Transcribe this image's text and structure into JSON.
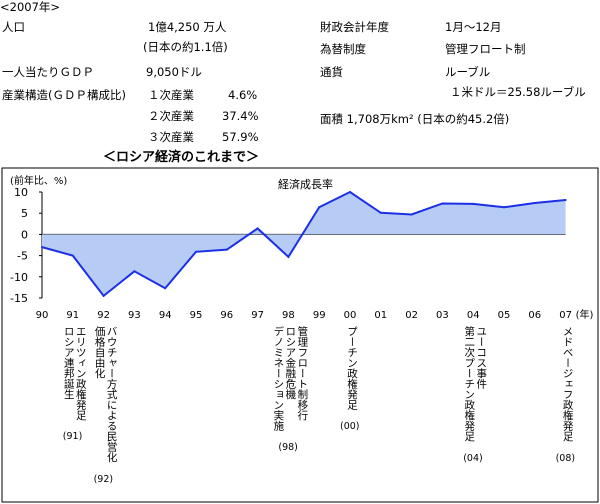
{
  "header": {
    "year_tag": "<2007年>",
    "population_label": "人口",
    "population_value": "1億4,250 万人",
    "population_note": "(日本の約1.1倍)",
    "fiscal_label": "財政会計年度",
    "fiscal_value": "1月～12月",
    "fx_system_label": "為替制度",
    "fx_system_value": "管理フロート制",
    "gdp_pc_label": "一人当たりＧＤＰ",
    "gdp_pc_value": "9,050ドル",
    "currency_label": "通貨",
    "currency_value": "ルーブル",
    "rate_value": "１米ドル＝25.58ルーブル",
    "structure_label": "産業構造(ＧＤＰ構成比)",
    "sector1_label": "１次産業",
    "sector1_value": "4.6%",
    "sector2_label": "２次産業",
    "sector2_value": "37.4%",
    "sector3_label": "３次産業",
    "sector3_value": "57.9%",
    "area_value": "面積 1,708万km² (日本の約45.2倍)"
  },
  "chart_data": {
    "type": "area",
    "title": "＜ロシア経済のこれまで＞",
    "ylabel": "(前年比、%)",
    "xlabel": "(年)",
    "series": [
      {
        "name": "経済成長率",
        "x": [
          "90",
          "91",
          "92",
          "93",
          "94",
          "95",
          "96",
          "97",
          "98",
          "99",
          "00",
          "01",
          "02",
          "03",
          "04",
          "05",
          "06",
          "07"
        ],
        "values": [
          -3.0,
          -5.0,
          -14.5,
          -8.7,
          -12.7,
          -4.1,
          -3.6,
          1.4,
          -5.3,
          6.4,
          10.0,
          5.1,
          4.7,
          7.3,
          7.2,
          6.4,
          7.4,
          8.1
        ]
      }
    ],
    "ylim": [
      -15,
      10
    ],
    "yticks": [
      10,
      5,
      0,
      -5,
      -10,
      -15
    ],
    "fill_color": "#b7ccf4",
    "line_color": "#1a2fe6",
    "annotations": [
      {
        "x": "91",
        "lines": [
          "エリツィン政権発足",
          "ロシア連邦誕生"
        ],
        "year": "(91)"
      },
      {
        "x": "92",
        "lines": [
          "バウチャー方式による民営化",
          "価格自由化"
        ],
        "year": "(92)"
      },
      {
        "x": "98",
        "lines": [
          "管理フロート制移行",
          "ロシア金融危機",
          "デノミネーション実施"
        ],
        "year": "(98)"
      },
      {
        "x": "00",
        "lines": [
          "プーチン政権発足"
        ],
        "year": "(00)"
      },
      {
        "x": "04",
        "lines": [
          "ユーコス事件",
          "第二次プーチン政権発足"
        ],
        "year": "(04)"
      },
      {
        "x": "07",
        "lines": [
          "メドベージェフ政権発足"
        ],
        "year": "(08)"
      }
    ]
  }
}
